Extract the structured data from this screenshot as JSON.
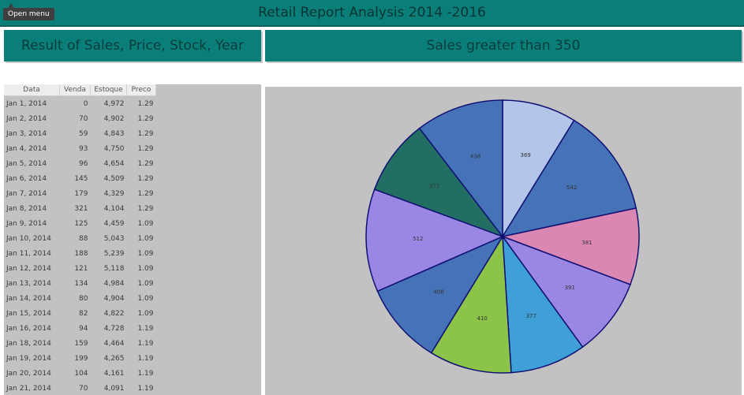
{
  "header": {
    "menu_label": "Open menu",
    "title": "Retail Report Analysis 2014 -2016"
  },
  "panels": {
    "left_title": "Result of Sales, Price, Stock, Year",
    "right_title": "Sales greater than 350"
  },
  "table": {
    "columns": [
      "Data",
      "Venda",
      "Estoque",
      "Preco"
    ],
    "rows": [
      [
        "Jan 1, 2014",
        "0",
        "4,972",
        "1.29"
      ],
      [
        "Jan 2, 2014",
        "70",
        "4,902",
        "1.29"
      ],
      [
        "Jan 3, 2014",
        "59",
        "4,843",
        "1.29"
      ],
      [
        "Jan 4, 2014",
        "93",
        "4,750",
        "1.29"
      ],
      [
        "Jan 5, 2014",
        "96",
        "4,654",
        "1.29"
      ],
      [
        "Jan 6, 2014",
        "145",
        "4,509",
        "1.29"
      ],
      [
        "Jan 7, 2014",
        "179",
        "4,329",
        "1.29"
      ],
      [
        "Jan 8, 2014",
        "321",
        "4,104",
        "1.29"
      ],
      [
        "Jan 9, 2014",
        "125",
        "4,459",
        "1.09"
      ],
      [
        "Jan 10, 2014",
        "88",
        "5,043",
        "1.09"
      ],
      [
        "Jan 11, 2014",
        "188",
        "5,239",
        "1.09"
      ],
      [
        "Jan 12, 2014",
        "121",
        "5,118",
        "1.09"
      ],
      [
        "Jan 13, 2014",
        "134",
        "4,984",
        "1.09"
      ],
      [
        "Jan 14, 2014",
        "80",
        "4,904",
        "1.09"
      ],
      [
        "Jan 15, 2014",
        "82",
        "4,822",
        "1.09"
      ],
      [
        "Jan 16, 2014",
        "94",
        "4,728",
        "1.19"
      ],
      [
        "Jan 18, 2014",
        "159",
        "4,464",
        "1.19"
      ],
      [
        "Jan 19, 2014",
        "199",
        "4,265",
        "1.19"
      ],
      [
        "Jan 20, 2014",
        "104",
        "4,161",
        "1.19"
      ],
      [
        "Jan 21, 2014",
        "70",
        "4,091",
        "1.19"
      ]
    ]
  },
  "chart_data": {
    "type": "pie",
    "title": "Sales greater than 350",
    "values": [
      369,
      542,
      381,
      391,
      377,
      410,
      408,
      512,
      377,
      438
    ],
    "labels": [
      "369",
      "542",
      "381",
      "391",
      "377",
      "410",
      "408",
      "512",
      "377",
      "438"
    ],
    "colors": [
      "#b3c6ea",
      "#4672b8",
      "#db87b3",
      "#9a86e3",
      "#3ea0d6",
      "#8cc449",
      "#4672b8",
      "#9a86e3",
      "#236e63",
      "#4672b8"
    ],
    "start": "12 o'clock, clockwise",
    "legend": "none"
  }
}
